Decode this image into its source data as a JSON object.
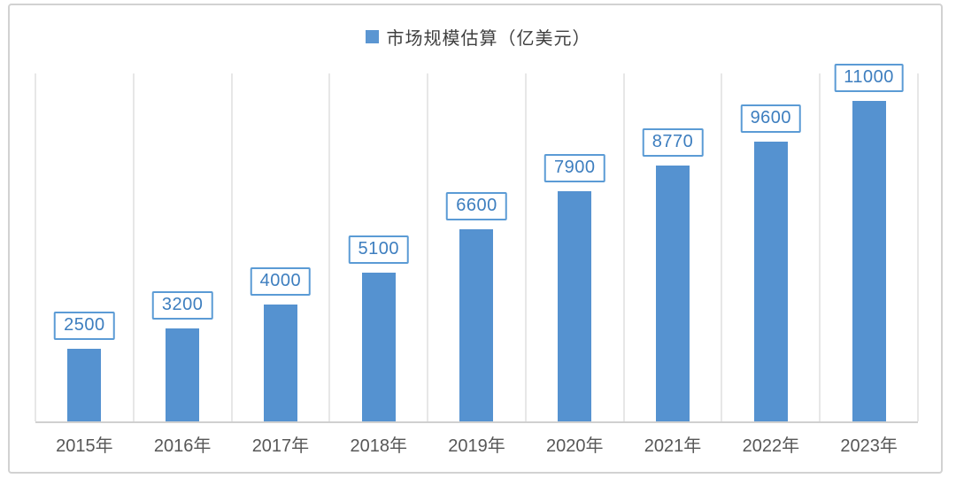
{
  "legend": {
    "label": "市场规模估算（亿美元）"
  },
  "chart_data": {
    "type": "bar",
    "title": "",
    "legend_entries": [
      "市场规模估算（亿美元）"
    ],
    "legend_position": "top-center",
    "categories": [
      "2015年",
      "2016年",
      "2017年",
      "2018年",
      "2019年",
      "2020年",
      "2021年",
      "2022年",
      "2023年"
    ],
    "values": [
      2500,
      3200,
      4000,
      5100,
      6600,
      7900,
      8770,
      9600,
      11000
    ],
    "data_labels": [
      2500,
      3200,
      4000,
      5100,
      6600,
      7900,
      8770,
      9600,
      11000
    ],
    "xlabel": "",
    "ylabel": "",
    "ylim": [
      0,
      12000
    ],
    "y_axis_ticks_visible": false,
    "grid": "vertical-category-separators",
    "colors": {
      "bar_fill": "#5592d0",
      "data_label_text": "#3d7ebf",
      "data_label_border": "#5b9bd5",
      "gridline": "#e7e7e7",
      "axis_line": "#d0d0d0",
      "x_tick_label": "#575757",
      "legend_text": "#3f3f3f",
      "outer_border": "#d2d2d2"
    }
  }
}
